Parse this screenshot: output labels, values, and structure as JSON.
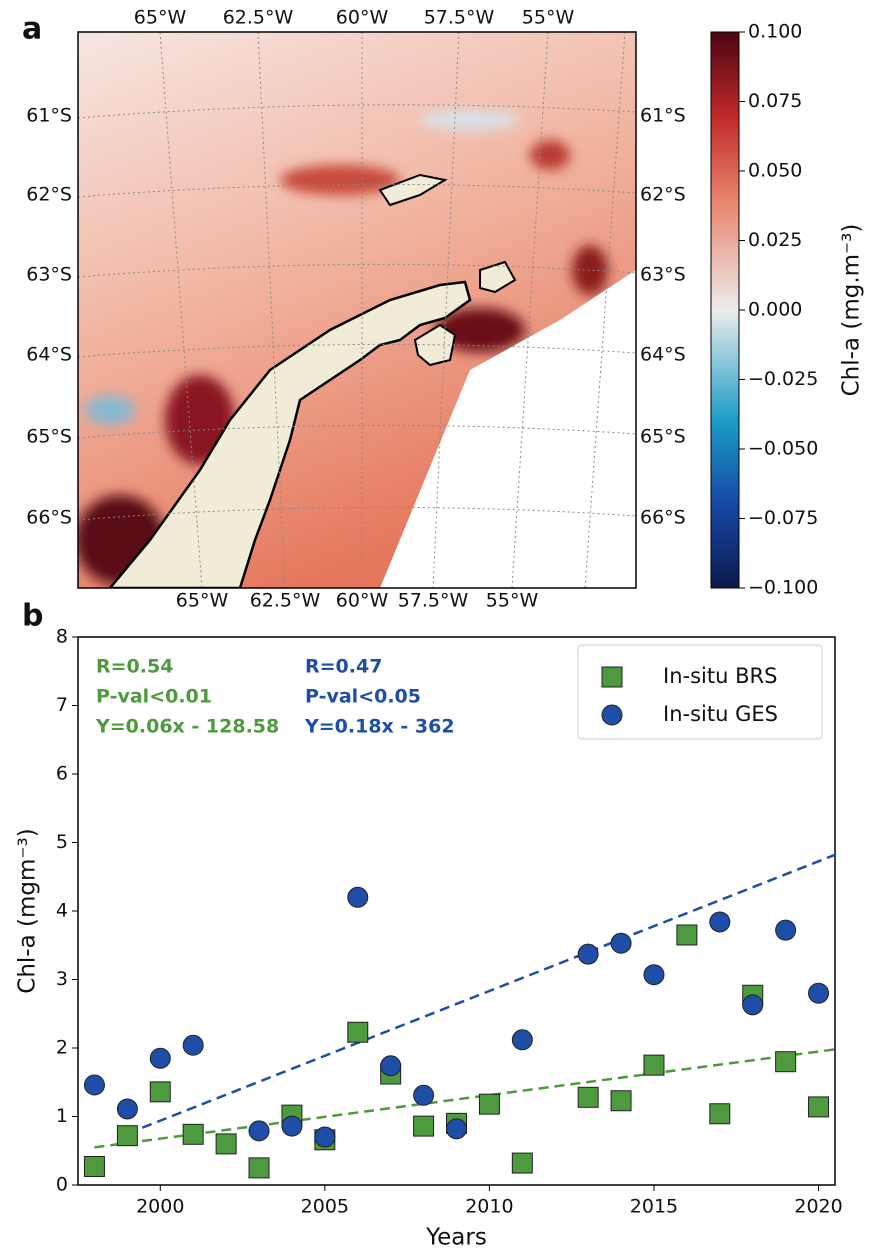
{
  "chart_data": [
    {
      "type": "map",
      "panel": "a",
      "lon_labels_top": [
        "65°W",
        "62.5°W",
        "60°W",
        "57.5°W",
        "55°W"
      ],
      "lon_labels_bottom": [
        "65°W",
        "62.5°W",
        "60°W",
        "57.5°W",
        "55°W"
      ],
      "lat_labels_left": [
        "61°S",
        "62°S",
        "63°S",
        "64°S",
        "65°S",
        "66°S"
      ],
      "lat_labels_right": [
        "61°S",
        "62°S",
        "63°S",
        "64°S",
        "65°S",
        "66°S"
      ],
      "colorbar": {
        "label": "Chl-a (mg.m⁻³)",
        "clim": [
          -0.1,
          0.1
        ],
        "ticks": [
          {
            "value": 0.1,
            "label": "0.100"
          },
          {
            "value": 0.075,
            "label": "0.075"
          },
          {
            "value": 0.05,
            "label": "0.050"
          },
          {
            "value": 0.025,
            "label": "0.025"
          },
          {
            "value": 0,
            "label": "0.000"
          },
          {
            "value": -0.025,
            "label": "−0.025"
          },
          {
            "value": -0.05,
            "label": "−0.050"
          },
          {
            "value": -0.075,
            "label": "−0.075"
          },
          {
            "value": -0.1,
            "label": "−0.100"
          }
        ]
      }
    },
    {
      "type": "scatter",
      "panel": "b",
      "xlabel": "Years",
      "ylabel": "Chl-a (mgm⁻³)",
      "xlim": [
        1997.5,
        2020.5
      ],
      "xticks": [
        2000,
        2005,
        2010,
        2015,
        2020
      ],
      "ylim": [
        0,
        8
      ],
      "yticks": [
        0,
        1,
        2,
        3,
        4,
        5,
        6,
        7,
        8
      ],
      "legend": "upper right",
      "series": [
        {
          "name": "In-situ BRS",
          "color": "#4e9a3e",
          "marker": "square",
          "x": [
            1998,
            1999,
            2000,
            2001,
            2002,
            2003,
            2004,
            2005,
            2006,
            2007,
            2008,
            2009,
            2010,
            2011,
            2013,
            2014,
            2015,
            2016,
            2017,
            2018,
            2019,
            2020
          ],
          "values": [
            0.27,
            0.72,
            1.36,
            0.74,
            0.6,
            0.25,
            1.02,
            0.66,
            2.23,
            1.62,
            0.86,
            0.9,
            1.18,
            0.32,
            1.28,
            1.23,
            1.75,
            3.65,
            1.04,
            2.77,
            1.8,
            1.14
          ],
          "trend": {
            "x": [
              1998,
              2020.5
            ],
            "values": [
              0.55,
              1.98
            ]
          }
        },
        {
          "name": "In-situ GES",
          "color": "#1f4ea8",
          "marker": "circle",
          "x": [
            1998,
            1999,
            2000,
            2001,
            2003,
            2004,
            2005,
            2006,
            2007,
            2008,
            2009,
            2011,
            2013,
            2014,
            2015,
            2017,
            2018,
            2019,
            2020
          ],
          "values": [
            1.46,
            1.11,
            1.85,
            2.04,
            0.79,
            0.86,
            0.7,
            4.2,
            1.74,
            1.31,
            0.82,
            2.12,
            3.37,
            3.53,
            3.07,
            3.84,
            2.63,
            3.72,
            2.8
          ],
          "trend": {
            "x": [
              1999,
              2020.5
            ],
            "values": [
              0.75,
              4.82
            ]
          }
        }
      ],
      "annotations": [
        {
          "color": "#4e9a3e",
          "lines": [
            "R=0.54",
            "P-val<0.01",
            "Y=0.06x - 128.58"
          ]
        },
        {
          "color": "#1f4ea8",
          "lines": [
            "R=0.47",
            "P-val<0.05",
            "Y=0.18x - 362"
          ]
        }
      ]
    }
  ]
}
